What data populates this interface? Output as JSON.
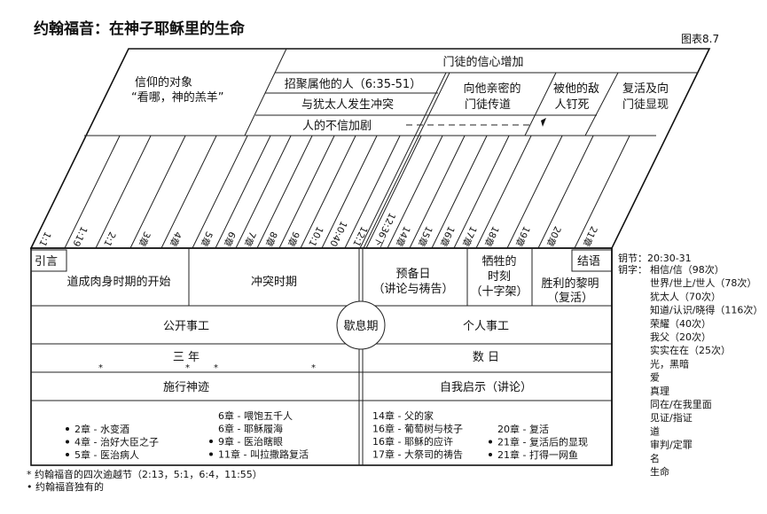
{
  "title": "约翰福音：在神子耶稣里的生命",
  "figure_label": "图表8.7",
  "top": {
    "faith_object": [
      "信仰的对象",
      "“看哪，神的羔羊”"
    ],
    "disciples_faith": "门徒的信心增加",
    "gathering": "招聚属他的人（6:35-51）",
    "conflict_jews": "与犹太人发生冲突",
    "unbelief": "人的不信加剧",
    "teaching": [
      "向他亲密的",
      "门徒传道"
    ],
    "crucified": [
      "被他的敌",
      "人钉死"
    ],
    "resurrection": [
      "复活及向",
      "门徒显现"
    ]
  },
  "chapters": [
    "1:1",
    "1:19",
    "2:1",
    "3章",
    "4章",
    "5章",
    "6章",
    "7章",
    "8章",
    "9章",
    "10:1",
    "10:40",
    "12:1",
    "12:36下",
    "14章",
    "15章",
    "16章",
    "17章",
    "18章",
    "19章",
    "20章",
    "21章"
  ],
  "segments": {
    "intro": "引言",
    "incarnation": "道成肉身时期的开始",
    "conflict": "冲突时期",
    "preparation": [
      "预备日",
      "（讲论与祷告）"
    ],
    "sacrifice": [
      "牺牲的",
      "时刻",
      "（十字架）"
    ],
    "victory": [
      "胜利的黎明",
      "（复活）"
    ],
    "epilogue": "结语"
  },
  "rows": {
    "public": "公开事工",
    "rest": "歇息期",
    "private": "个人事工",
    "three_years": "三  年",
    "few_days": "数  日",
    "miracles": "施行神迹",
    "self_revelation": "自我启示（讲论）"
  },
  "miracle_list_1": [
    {
      "text": "2章 - 水变酒",
      "unique": true
    },
    {
      "text": "4章 - 治好大臣之子",
      "unique": true
    },
    {
      "text": "5章 - 医治病人",
      "unique": true
    }
  ],
  "miracle_list_2": [
    {
      "text": "6章 - 喂饱五千人",
      "unique": false
    },
    {
      "text": "6章 - 耶稣履海",
      "unique": false
    },
    {
      "text": "9章 - 医治瞎眼",
      "unique": true
    },
    {
      "text": "11章 - 叫拉撒路复活",
      "unique": true
    }
  ],
  "discourse_list_1": [
    {
      "text": "14章 - 父的家",
      "unique": false
    },
    {
      "text": "16章 - 葡萄树与枝子",
      "unique": false
    },
    {
      "text": "16章 - 耶稣的应许",
      "unique": false
    },
    {
      "text": "17章 - 大祭司的祷告",
      "unique": false
    }
  ],
  "discourse_list_2": [
    {
      "text": "20章 - 复活",
      "unique": false
    },
    {
      "text": "21章 - 复活后的显现",
      "unique": true
    },
    {
      "text": "21章 - 打得一网鱼",
      "unique": true
    }
  ],
  "key": {
    "verse": "钥节：20:30-31",
    "words_label": "钥字：",
    "words": [
      "相信/信（98次）",
      "世界/世上/世人（78次）",
      "犹太人（70次）",
      "知道/认识/晓得（116次）",
      "荣耀（40次）",
      "我父（20次）",
      "实实在在（25次）",
      "光，黑暗",
      "爱",
      "真理",
      "同在/在我里面",
      "见证/指证",
      "道",
      "审判/定罪",
      "名",
      "生命"
    ]
  },
  "footnotes": {
    "star": "约翰福音的四次逾越节（2:13，5:1，6:4，11:55）",
    "bullet": "约翰福音独有的"
  }
}
